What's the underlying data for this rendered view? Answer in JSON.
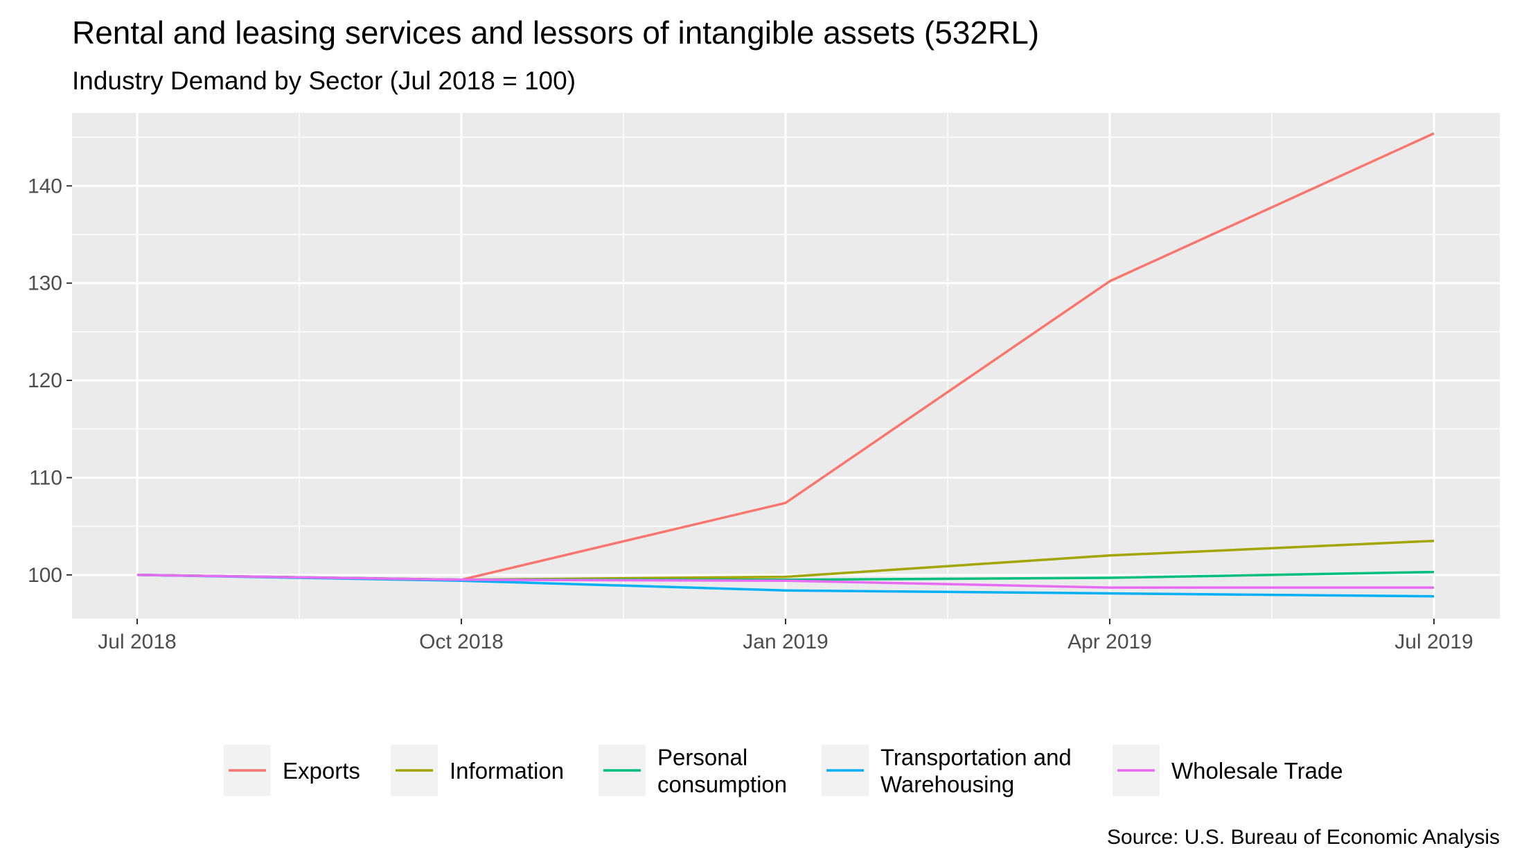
{
  "chart_data": {
    "type": "line",
    "title": "Rental and leasing services and lessors of intangible assets (532RL)",
    "subtitle": "Industry Demand by Sector (Jul 2018 = 100)",
    "caption": "Source: U.S. Bureau of Economic Analysis",
    "xlabel": "",
    "ylabel": "",
    "x": [
      "2018-07",
      "2018-10",
      "2019-01",
      "2019-04",
      "2019-07"
    ],
    "x_tick_labels": [
      "Jul 2018",
      "Oct 2018",
      "Jan 2019",
      "Apr 2019",
      "Jul 2019"
    ],
    "y_ticks": [
      100,
      110,
      120,
      130,
      140
    ],
    "ylim": [
      95.5,
      147.5
    ],
    "grid": true,
    "legend_position": "bottom",
    "series": [
      {
        "name": "Exports",
        "color": "#F8766D",
        "values": [
          100,
          99.5,
          107.4,
          130.2,
          145.4
        ]
      },
      {
        "name": "Information",
        "color": "#A3A500",
        "values": [
          100,
          99.5,
          99.8,
          102.0,
          103.5
        ]
      },
      {
        "name": "Personal consumption",
        "label_lines": [
          "Personal",
          "consumption"
        ],
        "color": "#00BF7D",
        "values": [
          100,
          99.5,
          99.5,
          99.7,
          100.3
        ]
      },
      {
        "name": "Transportation and Warehousing",
        "label_lines": [
          "Transportation and",
          "Warehousing"
        ],
        "color": "#00B0F6",
        "values": [
          100,
          99.4,
          98.4,
          98.1,
          97.8
        ]
      },
      {
        "name": "Wholesale Trade",
        "color": "#E76BF3",
        "values": [
          100,
          99.5,
          99.4,
          98.7,
          98.7
        ]
      }
    ]
  }
}
